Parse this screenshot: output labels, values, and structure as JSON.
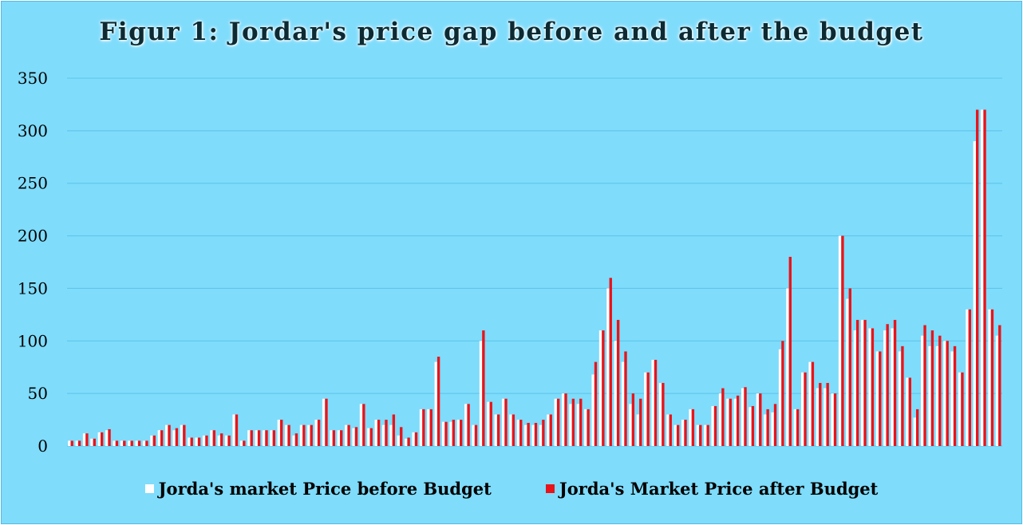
{
  "chart_data": {
    "type": "bar",
    "title": "Figur 1: Jordar's price gap before and after the budget",
    "xlabel": "",
    "ylabel": "",
    "ylim": [
      0,
      350
    ],
    "yticks": [
      "0",
      "50",
      "100",
      "150",
      "200",
      "250",
      "300",
      "350"
    ],
    "grid": true,
    "legend_position": "bottom",
    "series": [
      {
        "name": "Jorda's market Price before Budget",
        "color": "#ffffff",
        "values": [
          5,
          5,
          12,
          7,
          13,
          15,
          5,
          5,
          5,
          5,
          5,
          10,
          15,
          20,
          15,
          20,
          8,
          8,
          10,
          15,
          10,
          10,
          30,
          5,
          15,
          15,
          15,
          15,
          25,
          20,
          10,
          20,
          20,
          25,
          45,
          15,
          15,
          20,
          17,
          40,
          17,
          25,
          20,
          20,
          10,
          7,
          13,
          35,
          35,
          80,
          23,
          23,
          25,
          40,
          20,
          100,
          42,
          30,
          45,
          30,
          25,
          20,
          20,
          20,
          30,
          45,
          50,
          40,
          40,
          35,
          68,
          110,
          150,
          100,
          80,
          40,
          30,
          70,
          82,
          60,
          30,
          20,
          25,
          35,
          20,
          20,
          38,
          50,
          45,
          45,
          55,
          37,
          50,
          30,
          32,
          92,
          150,
          35,
          70,
          80,
          55,
          55,
          50,
          200,
          140,
          110,
          120,
          112,
          90,
          110,
          112,
          90,
          65,
          27,
          105,
          95,
          95,
          100,
          90,
          70,
          130,
          290,
          320,
          130,
          105
        ]
      },
      {
        "name": "Jorda's Market Price after Budget",
        "color": "#e8141a",
        "values": [
          5,
          5,
          12,
          7,
          13,
          16,
          5,
          5,
          5,
          5,
          5,
          10,
          15,
          20,
          17,
          20,
          8,
          8,
          10,
          15,
          12,
          10,
          30,
          5,
          15,
          15,
          15,
          15,
          25,
          20,
          12,
          20,
          20,
          25,
          45,
          15,
          15,
          20,
          18,
          40,
          17,
          25,
          25,
          30,
          18,
          8,
          13,
          35,
          35,
          85,
          23,
          25,
          25,
          40,
          20,
          110,
          42,
          30,
          45,
          30,
          25,
          22,
          22,
          25,
          30,
          45,
          50,
          45,
          45,
          35,
          80,
          110,
          160,
          120,
          90,
          50,
          45,
          70,
          82,
          60,
          30,
          20,
          25,
          35,
          20,
          20,
          38,
          55,
          45,
          48,
          56,
          38,
          50,
          35,
          40,
          100,
          180,
          35,
          70,
          80,
          60,
          60,
          50,
          200,
          150,
          120,
          120,
          112,
          90,
          116,
          120,
          95,
          65,
          35,
          115,
          110,
          105,
          100,
          95,
          70,
          130,
          320,
          320,
          130,
          115
        ]
      }
    ]
  }
}
